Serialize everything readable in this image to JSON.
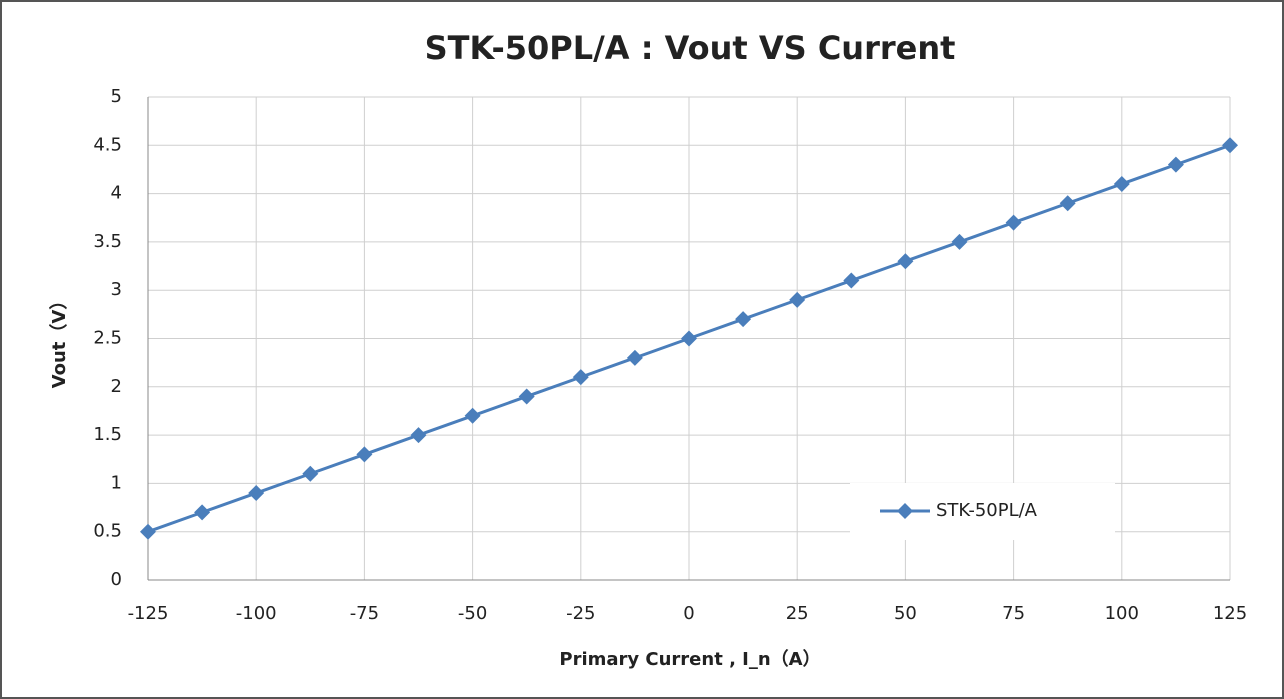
{
  "chart_data": {
    "type": "line",
    "title": "STK-50PL/A : Vout VS Current",
    "x_label": "Primary Current , I_n（A）",
    "y_label": "Vout（V）",
    "x": [
      -125,
      -112.5,
      -100,
      -87.5,
      -75,
      -62.5,
      -50,
      -37.5,
      -25,
      -12.5,
      0,
      12.5,
      25,
      37.5,
      50,
      62.5,
      75,
      87.5,
      100,
      112.5,
      125
    ],
    "series": [
      {
        "name": "STK-50PL/A",
        "color": "#4a7ebb",
        "values": [
          0.5,
          0.7,
          0.9,
          1.1,
          1.3,
          1.5,
          1.7,
          1.9,
          2.1,
          2.3,
          2.5,
          2.7,
          2.9,
          3.1,
          3.3,
          3.5,
          3.7,
          3.9,
          4.1,
          4.3,
          4.5
        ]
      }
    ],
    "xlim": [
      -125,
      125
    ],
    "xticks": [
      -125,
      -100,
      -75,
      -50,
      -25,
      0,
      25,
      50,
      75,
      100,
      125
    ],
    "ylim": [
      0,
      5
    ],
    "yticks": [
      0,
      0.5,
      1,
      1.5,
      2,
      2.5,
      3,
      3.5,
      4,
      4.5,
      5
    ],
    "grid": true,
    "legend": "lower right"
  }
}
